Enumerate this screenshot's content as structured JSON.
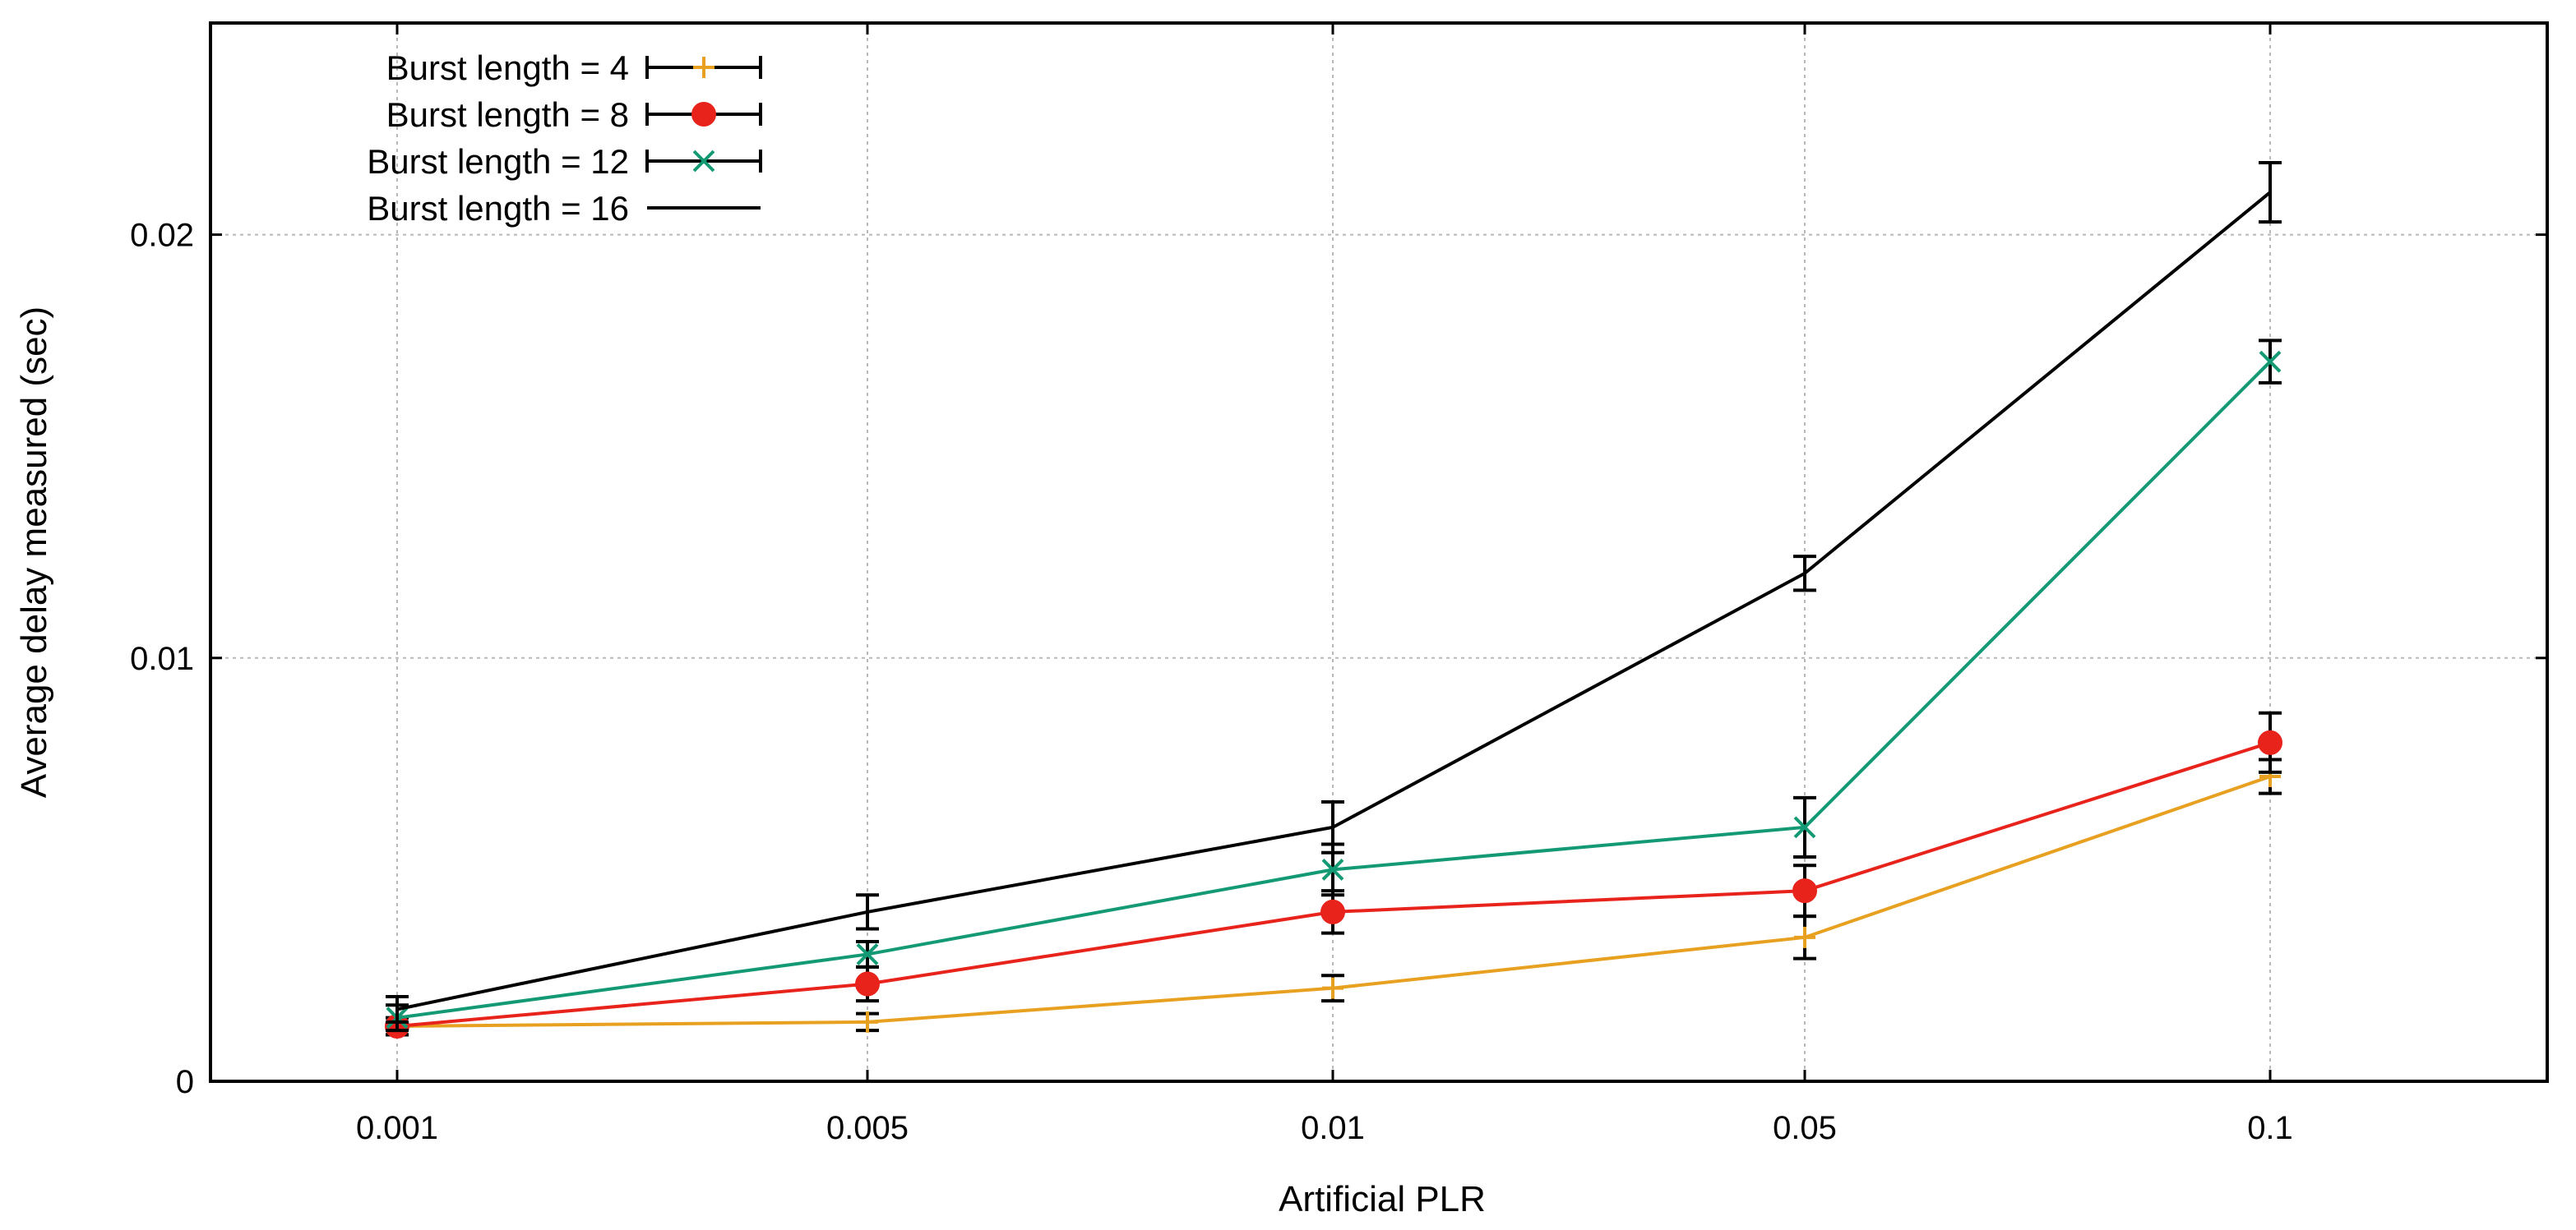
{
  "chart_data": {
    "type": "line",
    "title": "",
    "xlabel": "Artificial PLR",
    "ylabel": "Average delay measured (sec)",
    "categories": [
      "0.001",
      "0.005",
      "0.01",
      "0.05",
      "0.1"
    ],
    "ylim": [
      0,
      0.025
    ],
    "y_ticks": [
      {
        "value": 0,
        "label": "0"
      },
      {
        "value": 0.01,
        "label": "0.01"
      },
      {
        "value": 0.02,
        "label": "0.02"
      }
    ],
    "grid": true,
    "legend_position": "top-left",
    "series": [
      {
        "name": "Burst length = 4",
        "color": "#e8a020",
        "marker": "plus",
        "values": [
          0.0013,
          0.0014,
          0.0022,
          0.0034,
          0.0072
        ],
        "errors": [
          0.0002,
          0.0002,
          0.0003,
          0.0005,
          0.0004
        ]
      },
      {
        "name": "Burst length = 8",
        "color": "#e8231c",
        "marker": "circle",
        "values": [
          0.0013,
          0.0023,
          0.004,
          0.0045,
          0.008
        ],
        "errors": [
          0.0002,
          0.0004,
          0.0005,
          0.0006,
          0.0007
        ]
      },
      {
        "name": "Burst length = 12",
        "color": "#139a74",
        "marker": "cross",
        "values": [
          0.0015,
          0.003,
          0.005,
          0.006,
          0.017
        ],
        "errors": [
          0.0003,
          0.0003,
          0.0006,
          0.0007,
          0.0005
        ]
      },
      {
        "name": "Burst length = 16",
        "color": "#000000",
        "marker": "none",
        "values": [
          0.0017,
          0.004,
          0.006,
          0.012,
          0.021
        ],
        "errors": [
          0.0003,
          0.0004,
          0.0006,
          0.0004,
          0.0007
        ]
      }
    ]
  }
}
